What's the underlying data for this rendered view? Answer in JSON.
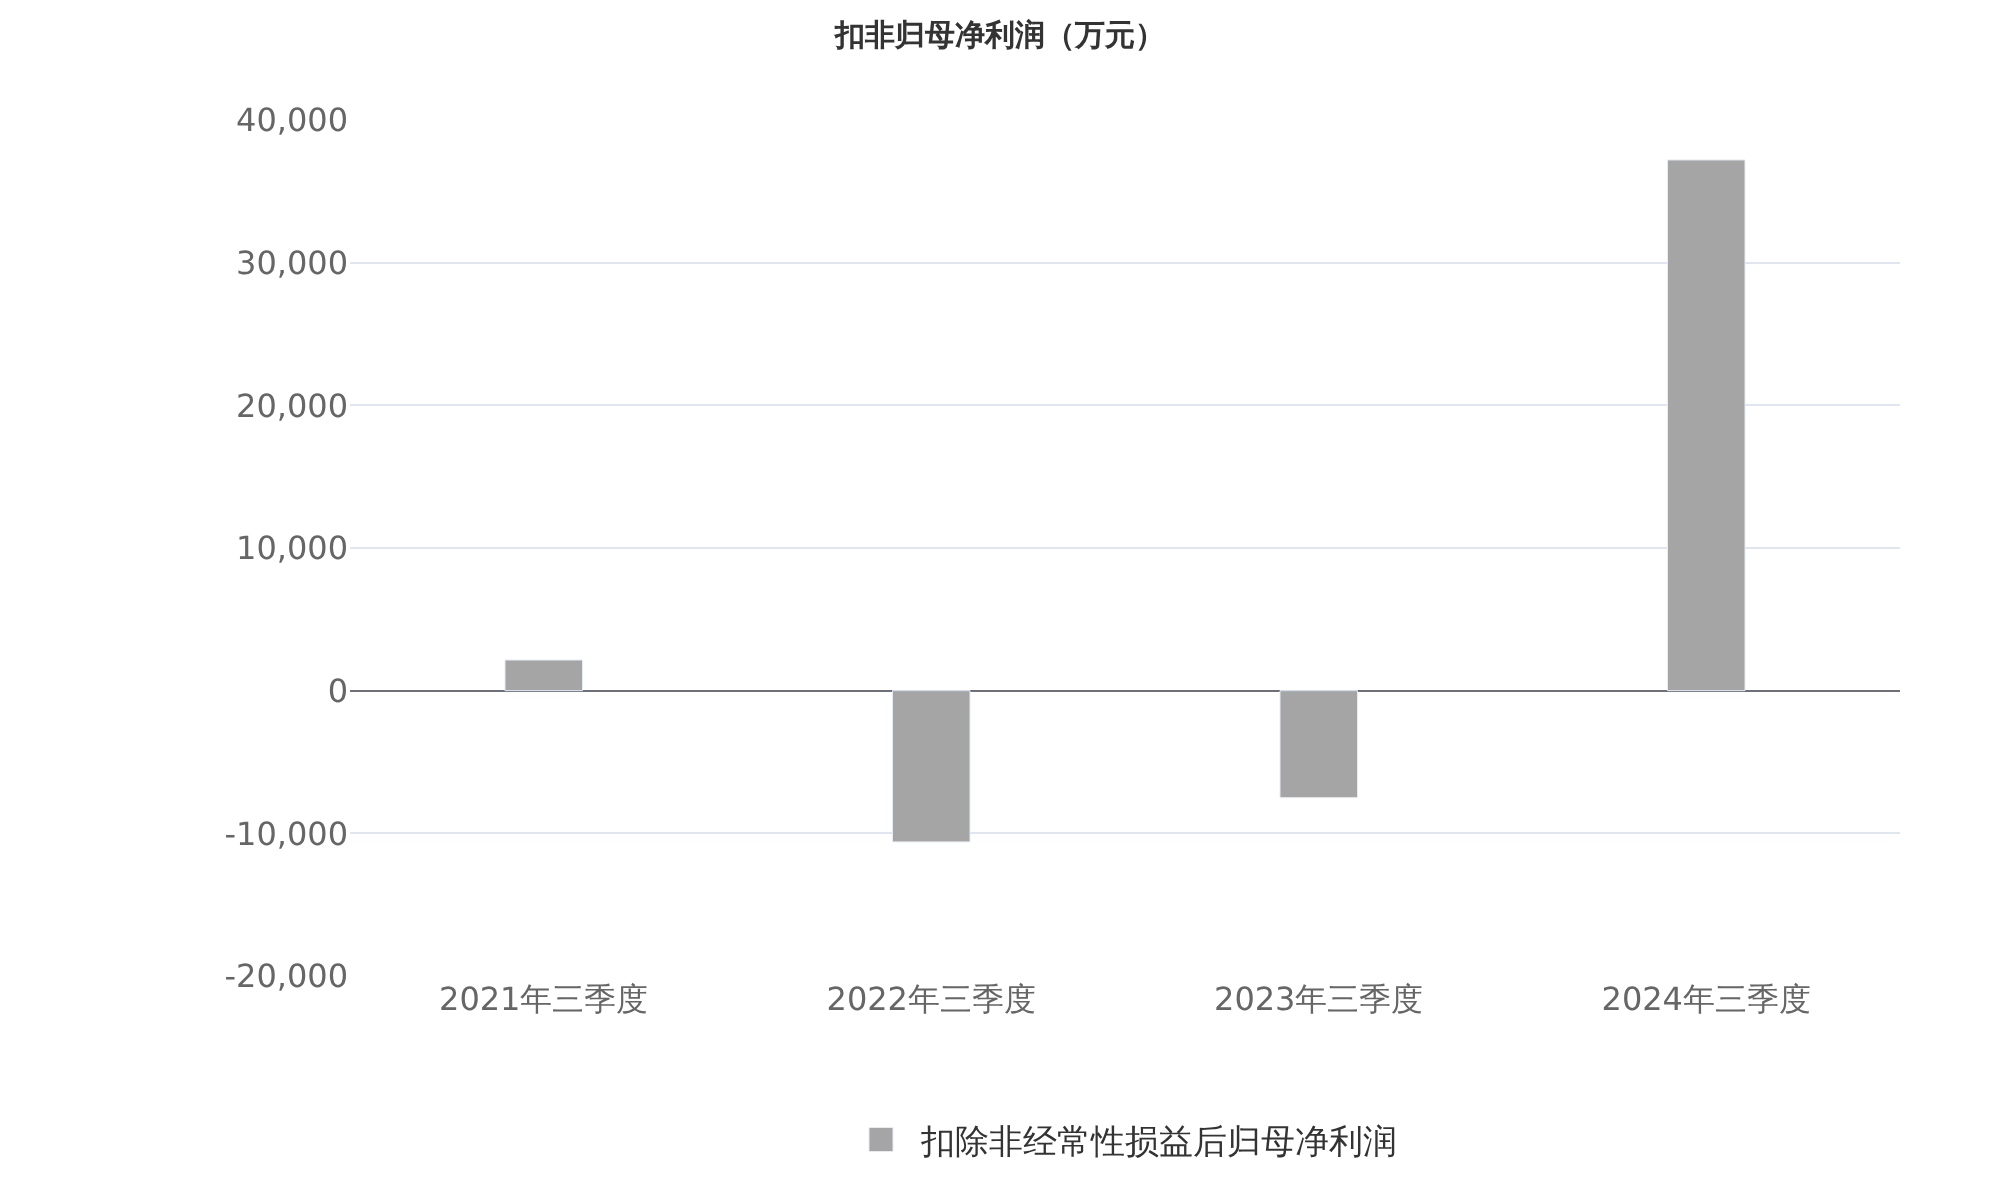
{
  "chart_data": {
    "type": "bar",
    "title": "扣非归母净利润（万元）",
    "categories": [
      "2021年三季度",
      "2022年三季度",
      "2023年三季度",
      "2024年三季度"
    ],
    "series": [
      {
        "name": "扣除非经常性损益后归母净利润",
        "color": "#a5a5a5",
        "values": [
          2150,
          -10600,
          -7500,
          37200
        ]
      }
    ],
    "ylim": [
      -20000,
      40000
    ],
    "yticks": [
      {
        "value": -20000,
        "label": "-20,000"
      },
      {
        "value": -10000,
        "label": "-10,000"
      },
      0,
      {
        "value": 10000,
        "label": "10,000"
      },
      {
        "value": 20000,
        "label": "20,000"
      },
      {
        "value": 30000,
        "label": "30,000"
      },
      {
        "value": 40000,
        "label": "40,000"
      }
    ],
    "grid": "y",
    "legend": "bottom"
  }
}
